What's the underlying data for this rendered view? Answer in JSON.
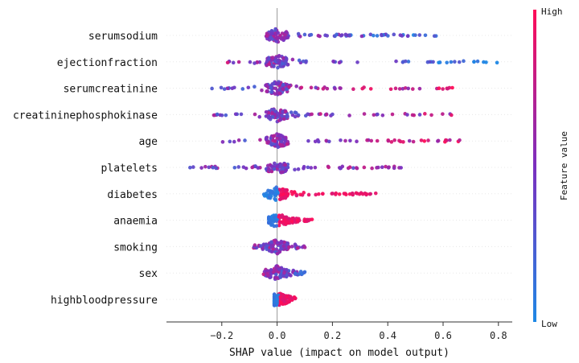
{
  "chart_data": {
    "type": "scatter",
    "subtype": "shap-beeswarm",
    "title": "",
    "xlabel": "SHAP value (impact on model output)",
    "xlim": [
      -0.4,
      0.85
    ],
    "xticks": [
      -0.2,
      0.0,
      0.2,
      0.4,
      0.6,
      0.8
    ],
    "xtick_labels": [
      "−0.2",
      "0.0",
      "0.2",
      "0.4",
      "0.6",
      "0.8"
    ],
    "grid": false,
    "colorbar": {
      "label": "Feature value",
      "high_label": "High",
      "low_label": "Low",
      "low_color": "#1e88e5",
      "high_color": "#ff0d57",
      "placement": "right"
    },
    "features": [
      {
        "name": "serumsodium",
        "min": -0.04,
        "max": 0.58,
        "skew": 0.0,
        "trend": -0.6
      },
      {
        "name": "ejectionfraction",
        "min": -0.2,
        "max": 0.83,
        "skew": 0.0,
        "trend": -0.8
      },
      {
        "name": "serumcreatinine",
        "min": -0.25,
        "max": 0.65,
        "skew": 0.0,
        "trend": 0.7
      },
      {
        "name": "creatininephosphokinase",
        "min": -0.24,
        "max": 0.66,
        "skew": 0.0,
        "trend": 0.3
      },
      {
        "name": "age",
        "min": -0.22,
        "max": 0.66,
        "skew": 0.0,
        "trend": 0.6
      },
      {
        "name": "platelets",
        "min": -0.35,
        "max": 0.48,
        "skew": 0.0,
        "trend": 0.1
      },
      {
        "name": "diabetes",
        "min": -0.05,
        "max": 0.36,
        "skew": 0.0,
        "trend": 1.0
      },
      {
        "name": "anaemia",
        "min": -0.03,
        "max": 0.13,
        "skew": 0.0,
        "trend": 1.0
      },
      {
        "name": "smoking",
        "min": -0.09,
        "max": 0.11,
        "skew": 0.0,
        "trend": 0.0
      },
      {
        "name": "sex",
        "min": -0.05,
        "max": 0.1,
        "skew": 0.0,
        "trend": -0.4
      },
      {
        "name": "highbloodpressure",
        "min": -0.01,
        "max": 0.07,
        "skew": 0.0,
        "trend": 1.0
      }
    ]
  }
}
